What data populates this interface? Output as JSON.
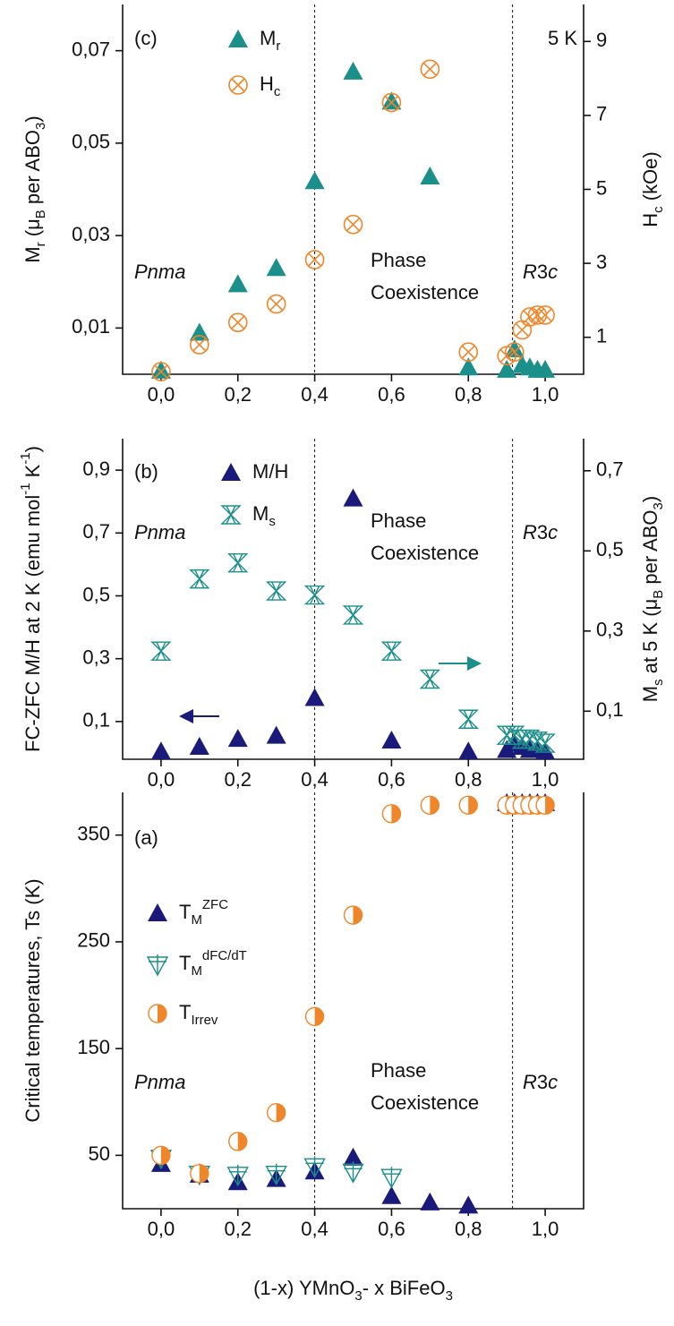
{
  "chart_data": [
    {
      "type": "scatter",
      "panel_label": "(c)",
      "condition": "5 K",
      "ylabel": [
        {
          "text": "M"
        },
        {
          "text": "r",
          "shift": "sub"
        },
        {
          "text": " (μ"
        },
        {
          "text": "B",
          "shift": "sub"
        },
        {
          "text": " per ABO"
        },
        {
          "text": "3",
          "shift": "sub"
        },
        {
          "text": ")"
        }
      ],
      "y2label": [
        {
          "text": "H"
        },
        {
          "text": "c",
          "shift": "sub"
        },
        {
          "text": " (kOe)"
        }
      ],
      "phase_left": [
        {
          "text": "Pnma",
          "italic": true
        }
      ],
      "phase_mid": [
        "Phase",
        "Coexistence"
      ],
      "phase_right": [
        {
          "text": "R",
          "italic": true
        },
        {
          "text": "3"
        },
        {
          "text": "c",
          "italic": true
        }
      ],
      "boundaries": [
        0.4,
        0.915
      ],
      "xlim": [
        -0.1,
        1.1
      ],
      "xticks": [
        {
          "value": 0,
          "label": "0,0"
        },
        {
          "value": 0.2,
          "label": "0,2"
        },
        {
          "value": 0.4,
          "label": "0,4"
        },
        {
          "value": 0.6,
          "label": "0,6"
        },
        {
          "value": 0.8,
          "label": "0,8"
        },
        {
          "value": 1.0,
          "label": "1,0"
        }
      ],
      "ylim": [
        0,
        0.08
      ],
      "yticks": [
        {
          "value": 0.01,
          "label": "0,01"
        },
        {
          "value": 0.03,
          "label": "0,03"
        },
        {
          "value": 0.05,
          "label": "0,05"
        },
        {
          "value": 0.07,
          "label": "0,07"
        }
      ],
      "y2lim": [
        0,
        10
      ],
      "y2ticks": [
        1,
        3,
        5,
        7,
        9
      ],
      "series": [
        {
          "name": [
            {
              "text": "M"
            },
            {
              "text": "r",
              "shift": "sub"
            }
          ],
          "color": "#1b8f8a",
          "marker": "triangle",
          "axis": "y",
          "x": [
            0,
            0.1,
            0.2,
            0.3,
            0.4,
            0.5,
            0.6,
            0.7,
            0.8,
            0.9,
            0.92,
            0.94,
            0.96,
            0.98,
            1.0
          ],
          "values": [
            0.0008,
            0.009,
            0.0195,
            0.023,
            0.0418,
            0.0655,
            0.059,
            0.0428,
            0.0015,
            0.001,
            0.0054,
            0.002,
            0.0015,
            0.001,
            0.001
          ]
        },
        {
          "name": [
            {
              "text": "H"
            },
            {
              "text": "c",
              "shift": "sub"
            }
          ],
          "color": "#f0862a",
          "marker": "circle-x",
          "axis": "y2",
          "x": [
            0,
            0.1,
            0.2,
            0.3,
            0.4,
            0.5,
            0.6,
            0.7,
            0.8,
            0.9,
            0.92,
            0.94,
            0.96,
            0.98,
            1.0
          ],
          "values": [
            0.07,
            0.8,
            1.4,
            1.9,
            3.1,
            4.05,
            7.35,
            8.25,
            0.6,
            0.5,
            0.6,
            1.2,
            1.55,
            1.6,
            1.6
          ]
        }
      ]
    },
    {
      "type": "scatter",
      "panel_label": "(b)",
      "ylabel": [
        {
          "text": "FC-ZFC M/H at 2 K (emu mol"
        },
        {
          "text": "-1",
          "shift": "sup"
        },
        {
          "text": " K"
        },
        {
          "text": "-1",
          "shift": "sup"
        },
        {
          "text": ")"
        }
      ],
      "y2label": [
        {
          "text": "M"
        },
        {
          "text": "s",
          "shift": "sub"
        },
        {
          "text": " at 5 K (μ"
        },
        {
          "text": "B",
          "shift": "sub"
        },
        {
          "text": " per ABO"
        },
        {
          "text": "3",
          "shift": "sub"
        },
        {
          "text": ")"
        }
      ],
      "phase_left": [
        {
          "text": "Pnma",
          "italic": true
        }
      ],
      "phase_mid": [
        "Phase",
        "Coexistence"
      ],
      "phase_right": [
        {
          "text": "R",
          "italic": true
        },
        {
          "text": "3"
        },
        {
          "text": "c",
          "italic": true
        }
      ],
      "boundaries": [
        0.4,
        0.915
      ],
      "xlim": [
        -0.1,
        1.1
      ],
      "xticks": [
        {
          "value": 0,
          "label": "0,0"
        },
        {
          "value": 0.2,
          "label": "0,2"
        },
        {
          "value": 0.4,
          "label": "0,4"
        },
        {
          "value": 0.6,
          "label": "0,6"
        },
        {
          "value": 0.8,
          "label": "0,8"
        },
        {
          "value": 1.0,
          "label": "1,0"
        }
      ],
      "ylim": [
        -0.02,
        1.0
      ],
      "yticks": [
        {
          "value": 0.1,
          "label": "0,1"
        },
        {
          "value": 0.3,
          "label": "0,3"
        },
        {
          "value": 0.5,
          "label": "0,5"
        },
        {
          "value": 0.7,
          "label": "0,7"
        },
        {
          "value": 0.9,
          "label": "0,9"
        }
      ],
      "y2lim": [
        -0.02,
        0.78
      ],
      "y2ticks": [
        {
          "value": 0.1,
          "label": "0,1"
        },
        {
          "value": 0.3,
          "label": "0,3"
        },
        {
          "value": 0.5,
          "label": "0,5"
        },
        {
          "value": 0.7,
          "label": "0,7"
        }
      ],
      "series": [
        {
          "name": "M/H",
          "color": "#1a1a7a",
          "marker": "triangle",
          "axis": "y",
          "x": [
            0,
            0.1,
            0.2,
            0.3,
            0.4,
            0.5,
            0.6,
            0.8,
            0.9,
            0.92,
            0.94,
            0.96,
            0.98,
            1.0
          ],
          "values": [
            0.005,
            0.02,
            0.045,
            0.055,
            0.175,
            0.81,
            0.04,
            0.005,
            0.01,
            0.03,
            0.02,
            0.01,
            0.01,
            0.005
          ]
        },
        {
          "name": [
            {
              "text": "M"
            },
            {
              "text": "s",
              "shift": "sub"
            }
          ],
          "color": "#1b8f8a",
          "marker": "hourglass-x",
          "axis": "y2",
          "x": [
            0,
            0.1,
            0.2,
            0.3,
            0.4,
            0.5,
            0.6,
            0.7,
            0.8,
            0.9,
            0.92,
            0.94,
            0.96,
            0.98,
            1.0
          ],
          "values": [
            0.25,
            0.43,
            0.47,
            0.4,
            0.39,
            0.34,
            0.25,
            0.18,
            0.08,
            0.04,
            0.04,
            0.03,
            0.03,
            0.025,
            0.02
          ]
        }
      ]
    },
    {
      "type": "scatter",
      "panel_label": "(a)",
      "ylabel": "Critical temperatures, Ts (K)",
      "xlabel": [
        {
          "text": "(1-x) YMnO"
        },
        {
          "text": "3",
          "shift": "sub"
        },
        {
          "text": "- x BiFeO"
        },
        {
          "text": "3",
          "shift": "sub"
        }
      ],
      "phase_left": [
        {
          "text": "Pnma",
          "italic": true
        }
      ],
      "phase_mid": [
        "Phase",
        "Coexistence"
      ],
      "phase_right": [
        {
          "text": "R",
          "italic": true
        },
        {
          "text": "3"
        },
        {
          "text": "c",
          "italic": true
        }
      ],
      "boundaries": [
        0.4,
        0.915
      ],
      "xlim": [
        -0.1,
        1.1
      ],
      "xticks": [
        {
          "value": 0,
          "label": "0,0"
        },
        {
          "value": 0.2,
          "label": "0,2"
        },
        {
          "value": 0.4,
          "label": "0,4"
        },
        {
          "value": 0.6,
          "label": "0,6"
        },
        {
          "value": 0.8,
          "label": "0,8"
        },
        {
          "value": 1.0,
          "label": "1,0"
        }
      ],
      "ylim": [
        0,
        390
      ],
      "yticks": [
        50,
        150,
        250,
        350
      ],
      "series": [
        {
          "name": [
            {
              "text": "T"
            },
            {
              "text": "M",
              "shift": "sub"
            },
            {
              "text": "ZFC",
              "shift": "sup"
            }
          ],
          "color": "#1a1a7a",
          "marker": "triangle",
          "axis": "y",
          "x": [
            0,
            0.1,
            0.2,
            0.3,
            0.4,
            0.5,
            0.6,
            0.7,
            0.8,
            0.9,
            0.92,
            0.94,
            0.96,
            0.98,
            1.0
          ],
          "values": [
            42,
            32,
            25,
            28,
            35,
            48,
            12,
            6,
            3,
            380,
            380,
            380,
            380,
            380,
            380
          ]
        },
        {
          "name": [
            {
              "text": "T"
            },
            {
              "text": "M",
              "shift": "sub"
            },
            {
              "text": "dFC/dT",
              "shift": "sup"
            }
          ],
          "color": "#1b8f8a",
          "marker": "triangle-down-plus",
          "axis": "y",
          "x": [
            0,
            0.1,
            0.2,
            0.3,
            0.4,
            0.5,
            0.6
          ],
          "values": [
            48,
            33,
            32,
            33,
            40,
            35,
            30
          ]
        },
        {
          "name": [
            {
              "text": "T"
            },
            {
              "text": "Irrev",
              "shift": "sub"
            }
          ],
          "color": "#f0862a",
          "marker": "half-circle",
          "axis": "y",
          "x": [
            0,
            0.1,
            0.2,
            0.3,
            0.4,
            0.5,
            0.6,
            0.7,
            0.8,
            0.9,
            0.92,
            0.94,
            0.96,
            0.98,
            1.0
          ],
          "values": [
            50,
            33,
            63,
            90,
            180,
            275,
            370,
            378,
            378,
            378,
            378,
            378,
            378,
            378,
            378
          ]
        }
      ]
    }
  ]
}
